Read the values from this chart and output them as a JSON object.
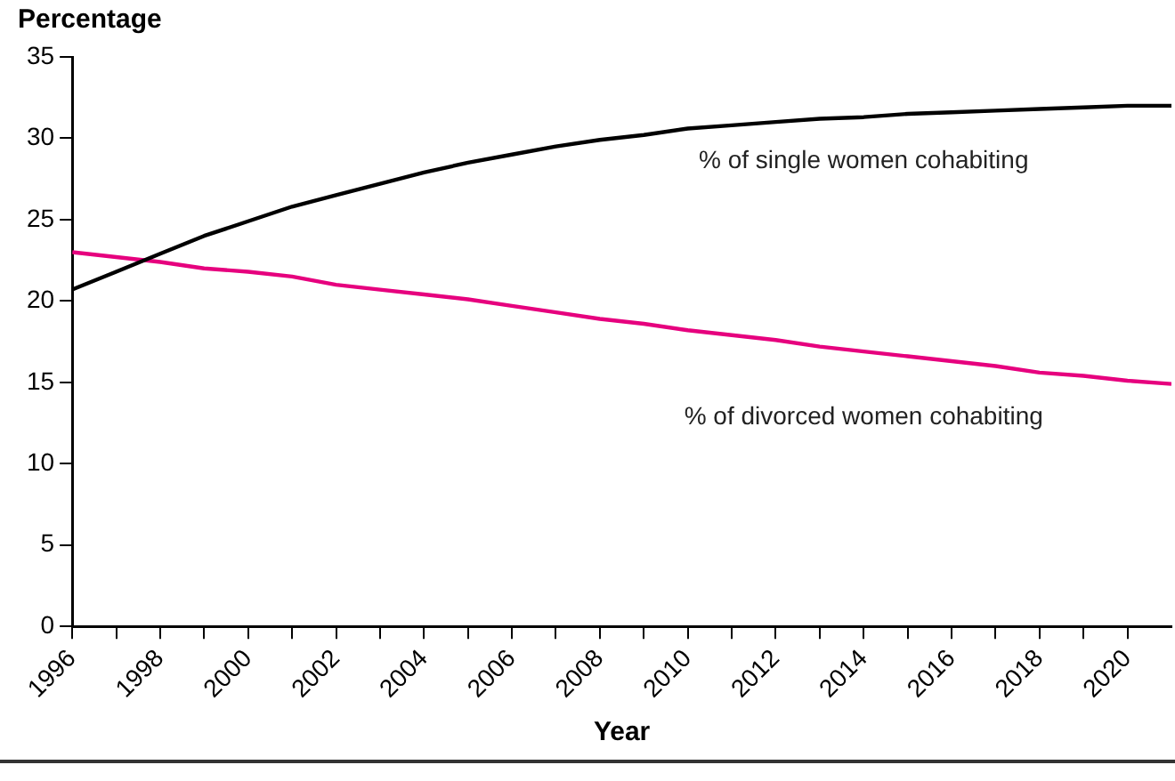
{
  "chart_data": {
    "type": "line",
    "xlabel": "Year",
    "ylabel": "Percentage",
    "x": [
      1996,
      1997,
      1998,
      1999,
      2000,
      2001,
      2002,
      2003,
      2004,
      2005,
      2006,
      2007,
      2008,
      2009,
      2010,
      2011,
      2012,
      2013,
      2014,
      2015,
      2016,
      2017,
      2018,
      2019,
      2020,
      2021
    ],
    "series": [
      {
        "name": "% of single women cohabiting",
        "color": "#000000",
        "values": [
          20.7,
          21.8,
          22.9,
          24.0,
          24.9,
          25.8,
          26.5,
          27.2,
          27.9,
          28.5,
          29.0,
          29.5,
          29.9,
          30.2,
          30.6,
          30.8,
          31.0,
          31.2,
          31.3,
          31.5,
          31.6,
          31.7,
          31.8,
          31.9,
          32.0,
          32.0
        ]
      },
      {
        "name": "% of divorced women cohabiting",
        "color": "#e6007e",
        "values": [
          23.0,
          22.7,
          22.4,
          22.0,
          21.8,
          21.5,
          21.0,
          20.7,
          20.4,
          20.1,
          19.7,
          19.3,
          18.9,
          18.6,
          18.2,
          17.9,
          17.6,
          17.2,
          16.9,
          16.6,
          16.3,
          16.0,
          15.6,
          15.4,
          15.1,
          14.9
        ]
      }
    ],
    "xlim": [
      1996,
      2021
    ],
    "xticks": [
      1996,
      {
        "value": 1997,
        "label": null
      },
      1998,
      {
        "value": 1999,
        "label": null
      },
      2000,
      {
        "value": 2001,
        "label": null
      },
      2002,
      {
        "value": 2003,
        "label": null
      },
      2004,
      {
        "value": 2005,
        "label": null
      },
      2006,
      {
        "value": 2007,
        "label": null
      },
      2008,
      {
        "value": 2009,
        "label": null
      },
      2010,
      {
        "value": 2011,
        "label": null
      },
      2012,
      {
        "value": 2013,
        "label": null
      },
      2014,
      {
        "value": 2015,
        "label": null
      },
      2016,
      {
        "value": 2017,
        "label": null
      },
      2018,
      {
        "value": 2019,
        "label": null
      },
      2020
    ],
    "ylim": [
      0,
      35
    ],
    "yticks": [
      0,
      5,
      10,
      15,
      20,
      25,
      30,
      35
    ],
    "grid": false,
    "legend": false,
    "marker": "none",
    "line_style": "solid"
  }
}
